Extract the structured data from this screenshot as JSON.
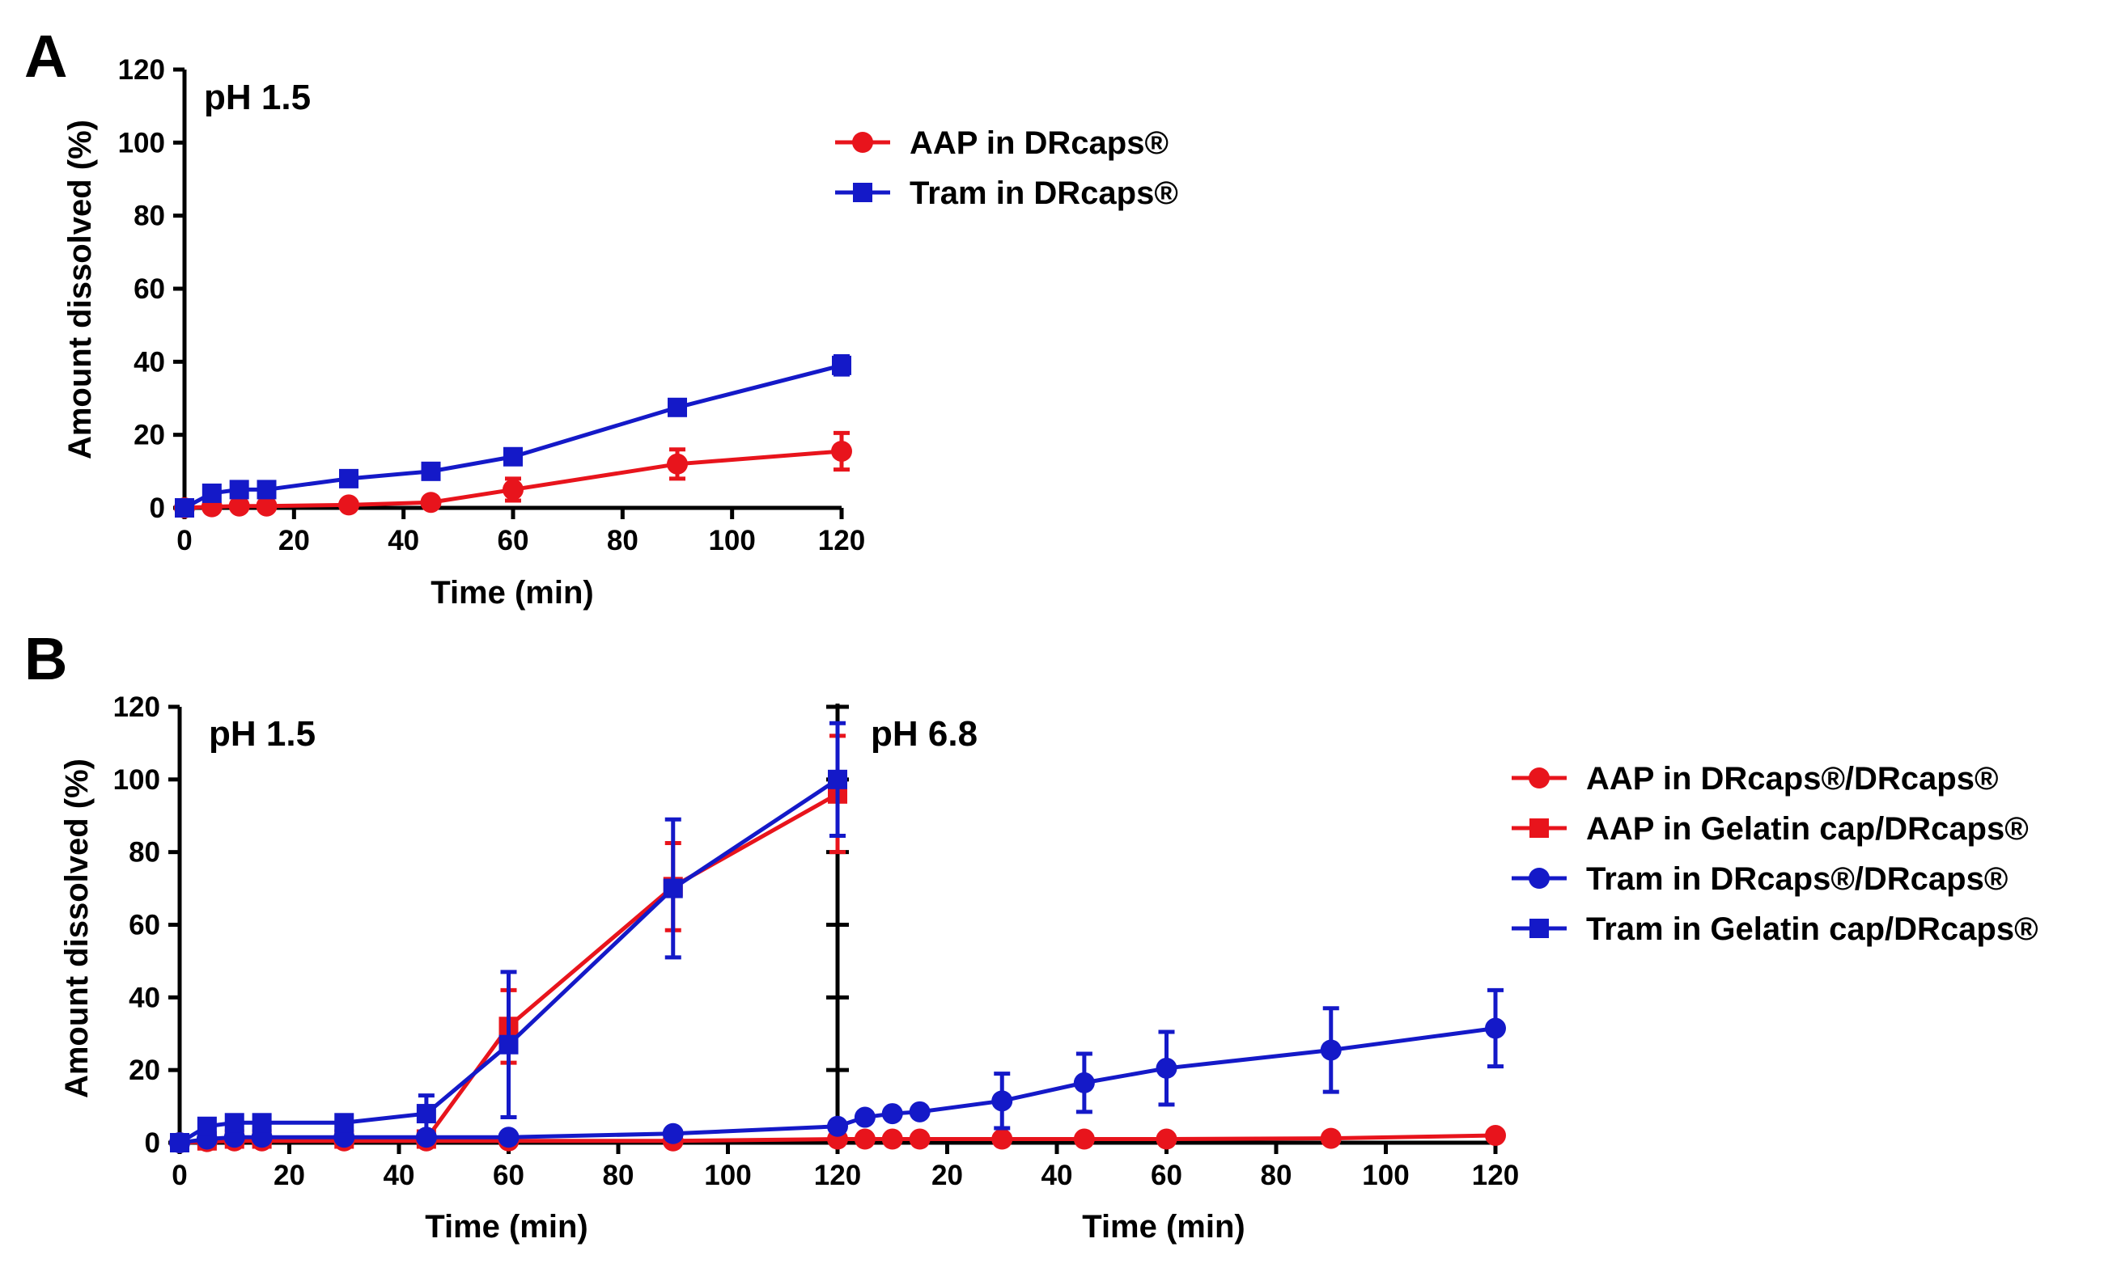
{
  "chart_data": [
    {
      "panel": "A",
      "type": "line",
      "annotation": "pH 1.5",
      "xlabel": "Time (min)",
      "ylabel": "Amount dissolved (%)",
      "xlim": [
        0,
        120
      ],
      "ylim": [
        0,
        120
      ],
      "xticks": [
        0,
        20,
        40,
        60,
        80,
        100,
        120
      ],
      "yticks": [
        0,
        20,
        40,
        60,
        80,
        100,
        120
      ],
      "legend_position": "top-right",
      "series": [
        {
          "name": "AAP in DRcaps®",
          "color": "#e8141c",
          "marker": "circle",
          "x": [
            0,
            5,
            10,
            15,
            30,
            45,
            60,
            90,
            120
          ],
          "values": [
            0,
            0.3,
            0.5,
            0.5,
            0.8,
            1.5,
            5,
            12,
            15.5
          ],
          "errors": [
            0,
            0,
            0,
            0,
            0,
            0.5,
            3,
            4,
            5
          ]
        },
        {
          "name": "Tram in DRcaps®",
          "color": "#1419c8",
          "marker": "square",
          "x": [
            0,
            5,
            10,
            15,
            30,
            45,
            60,
            90,
            120
          ],
          "values": [
            0,
            4,
            5,
            5,
            8,
            10,
            14,
            27.5,
            39
          ],
          "errors": [
            0,
            0.5,
            0.5,
            0.5,
            0.8,
            1,
            1,
            1.5,
            2.5
          ]
        }
      ]
    },
    {
      "panel": "B",
      "type": "line",
      "annotations": [
        "pH 1.5",
        "pH 6.8"
      ],
      "xlabel": "Time (min)",
      "ylabel": "Amount dissolved (%)",
      "xlim": [
        0,
        240
      ],
      "ylim": [
        0,
        120
      ],
      "xtick_labels": [
        "0",
        "20",
        "40",
        "60",
        "80",
        "100",
        "120",
        "20",
        "40",
        "60",
        "80",
        "100",
        "120"
      ],
      "yticks": [
        0,
        20,
        40,
        60,
        80,
        100,
        120
      ],
      "legend_position": "right",
      "series": [
        {
          "name": "AAP in DRcaps®/DRcaps®",
          "color": "#e8141c",
          "marker": "circle",
          "x": [
            0,
            5,
            10,
            15,
            30,
            45,
            60,
            90,
            120,
            125,
            130,
            135,
            150,
            165,
            180,
            210,
            240
          ],
          "values": [
            0,
            0.3,
            0.5,
            0.5,
            0.5,
            0.5,
            0.5,
            0.5,
            1,
            1,
            1,
            1,
            1,
            1,
            1,
            1.2,
            2
          ],
          "errors": [
            0,
            0,
            0,
            0,
            0,
            0,
            0,
            0,
            0,
            0,
            0,
            0,
            0,
            0,
            0,
            0.2,
            0.5
          ]
        },
        {
          "name": "AAP in Gelatin cap/DRcaps®",
          "color": "#e8141c",
          "marker": "square",
          "x": [
            0,
            5,
            10,
            15,
            30,
            45,
            60,
            90,
            120
          ],
          "values": [
            0,
            0.5,
            1,
            1,
            1,
            1,
            32,
            70.5,
            96
          ],
          "errors": [
            0,
            0,
            0,
            0,
            0,
            0.5,
            10,
            12,
            16
          ]
        },
        {
          "name": "Tram in DRcaps®/DRcaps®",
          "color": "#1419c8",
          "marker": "circle",
          "x": [
            0,
            5,
            10,
            15,
            30,
            45,
            60,
            90,
            120,
            125,
            130,
            135,
            150,
            165,
            180,
            210,
            240
          ],
          "values": [
            0,
            1,
            1.5,
            1.5,
            1.5,
            1.5,
            1.5,
            2.5,
            4.5,
            7,
            8,
            8.5,
            11.5,
            16.5,
            20.5,
            25.5,
            31.5
          ],
          "errors": [
            0,
            0,
            0,
            0,
            0,
            0,
            0,
            0.5,
            1,
            1,
            1,
            1,
            7.5,
            8,
            10,
            11.5,
            10.5
          ]
        },
        {
          "name": "Tram in Gelatin cap/DRcaps®",
          "color": "#1419c8",
          "marker": "square",
          "x": [
            0,
            5,
            10,
            15,
            30,
            45,
            60,
            90,
            120
          ],
          "values": [
            0,
            4.5,
            5.5,
            5.5,
            5.5,
            8,
            27,
            70,
            100
          ],
          "errors": [
            0,
            0.5,
            0.5,
            0.5,
            0.5,
            5,
            20,
            19,
            15.5
          ]
        }
      ]
    }
  ]
}
